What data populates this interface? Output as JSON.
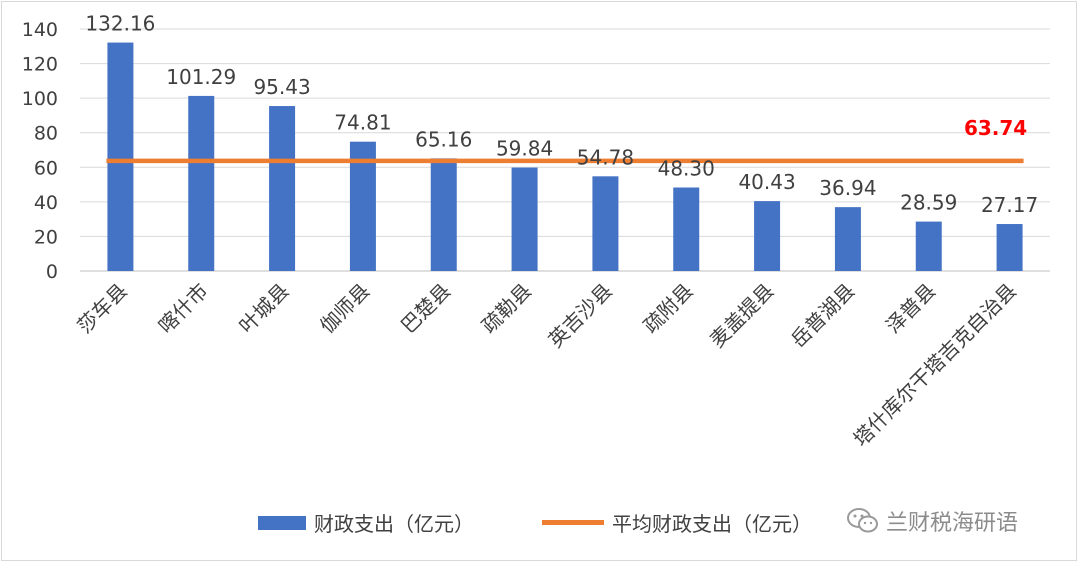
{
  "chart_data": {
    "type": "bar",
    "categories": [
      "莎车县",
      "喀什市",
      "叶城县",
      "伽师县",
      "巴楚县",
      "疏勒县",
      "英吉沙县",
      "疏附县",
      "麦盖提县",
      "岳普湖县",
      "泽普县",
      "塔什库尔干塔吉克自治县"
    ],
    "series": [
      {
        "name": "财政支出（亿元）",
        "type": "bar",
        "color": "#4472C4",
        "values": [
          132.16,
          101.29,
          95.43,
          74.81,
          65.16,
          59.84,
          54.78,
          48.3,
          40.43,
          36.94,
          28.59,
          27.17
        ],
        "labels": [
          "132.16",
          "101.29",
          "95.43",
          "74.81",
          "65.16",
          "59.84",
          "54.78",
          "48.30",
          "40.43",
          "36.94",
          "28.59",
          "27.17"
        ]
      },
      {
        "name": "平均财政支出（亿元）",
        "type": "line",
        "color": "#ED7D31",
        "value": 63.74,
        "label": "63.74",
        "label_color": "#FF0000"
      }
    ],
    "ylim": [
      0,
      140
    ],
    "yticks": [
      "0",
      "20",
      "40",
      "60",
      "80",
      "100",
      "120",
      "140"
    ],
    "grid": true,
    "legend_position": "bottom"
  },
  "watermark": {
    "text": "兰财税海研语",
    "icon": "wechat-icon"
  }
}
